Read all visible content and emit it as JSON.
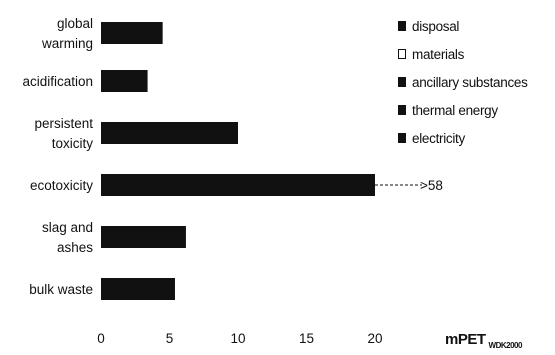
{
  "chart_data": {
    "type": "bar",
    "orientation": "horizontal",
    "stacked": true,
    "categories": [
      [
        "global",
        "warming"
      ],
      [
        "acidification"
      ],
      [
        "persistent",
        "toxicity"
      ],
      [
        "ecotoxicity"
      ],
      [
        "slag and",
        "ashes"
      ],
      [
        "bulk waste"
      ]
    ],
    "values": [
      4.5,
      3.4,
      10.0,
      20.0,
      6.2,
      5.4
    ],
    "series": [
      {
        "name": "disposal",
        "color": "#111111"
      },
      {
        "name": "materials",
        "color": "#ffffff"
      },
      {
        "name": "ancillary substances",
        "color": "#111111"
      },
      {
        "name": "thermal energy",
        "color": "#111111"
      },
      {
        "name": "electricity",
        "color": "#111111"
      }
    ],
    "xticks": [
      "0",
      "5",
      "10",
      "15",
      "20"
    ],
    "xlim": [
      0,
      20
    ],
    "annotation": {
      "category_index": 3,
      "text": ">58"
    },
    "xlabel": {
      "main": "mPET",
      "sub": "WDK2000"
    },
    "legend_position": "top-right"
  }
}
